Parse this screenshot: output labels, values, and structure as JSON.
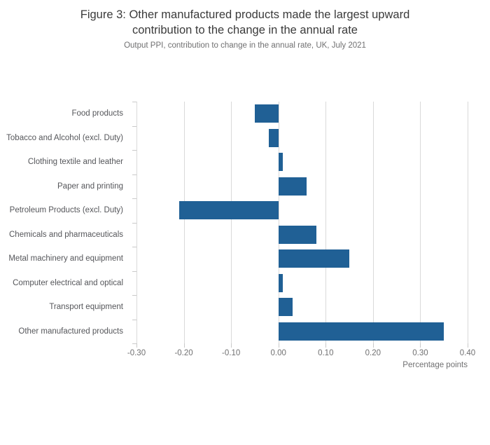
{
  "chart_data": {
    "type": "bar",
    "orientation": "horizontal",
    "title": "Figure 3: Other manufactured products made the largest upward contribution to the change in the annual rate",
    "subtitle": "Output PPI, contribution to change in the annual rate, UK, July 2021",
    "xlabel": "Percentage points",
    "categories": [
      "Food products",
      "Tobacco and Alcohol (excl. Duty)",
      "Clothing textile and leather",
      "Paper and printing",
      "Petroleum Products (excl. Duty)",
      "Chemicals and pharmaceuticals",
      "Metal machinery and equipment",
      "Computer electrical and optical",
      "Transport equipment",
      "Other manufactured products"
    ],
    "values": [
      -0.05,
      -0.02,
      0.01,
      0.06,
      -0.21,
      0.08,
      0.15,
      0.01,
      0.03,
      0.35
    ],
    "xlim": [
      -0.3,
      0.4
    ],
    "xticks": [
      -0.3,
      -0.2,
      -0.1,
      0.0,
      0.1,
      0.2,
      0.3,
      0.4
    ],
    "xtick_labels": [
      "-0.30",
      "-0.20",
      "-0.10",
      "0.00",
      "0.10",
      "0.20",
      "0.30",
      "0.40"
    ],
    "bar_color": "#206095",
    "grid": true,
    "legend": "none"
  }
}
